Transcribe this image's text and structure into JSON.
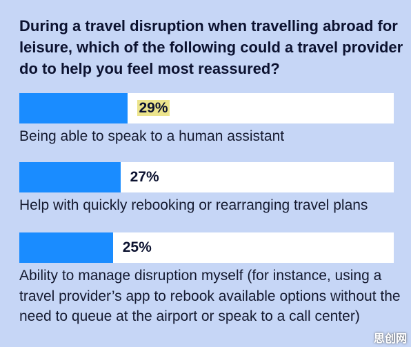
{
  "chart_data": {
    "type": "bar",
    "orientation": "horizontal",
    "title": "During a travel disruption when travelling abroad for leisure, which of the following could a travel provider do to help you feel most reassured?",
    "categories": [
      "Being able to speak to a human assistant",
      "Help with quickly rebooking or rearranging travel plans",
      "Ability to manage disruption myself (for instance, using a travel provider’s app to rebook available options without the need to queue at the airport or speak to a call center)"
    ],
    "values": [
      29,
      27,
      25
    ],
    "value_labels": [
      "29%",
      "27%",
      "25%"
    ],
    "color": "#1a8cff",
    "xlim": [
      0,
      100
    ]
  },
  "watermark": "思创网"
}
